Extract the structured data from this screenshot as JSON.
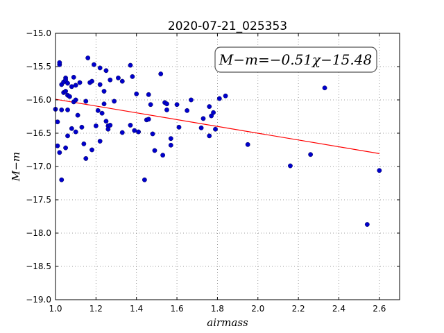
{
  "chart_data": {
    "type": "scatter",
    "title": "2020-07-21_025353",
    "xlabel": "airmass",
    "ylabel": "M−m",
    "xlim": [
      1.0,
      2.7
    ],
    "ylim": [
      -19.0,
      -15.0
    ],
    "xticks": [
      1.0,
      1.2,
      1.4,
      1.6,
      1.8,
      2.0,
      2.2,
      2.4,
      2.6
    ],
    "xtick_labels": [
      "1.0",
      "1.2",
      "1.4",
      "1.6",
      "1.8",
      "2.0",
      "2.2",
      "2.4",
      "2.6"
    ],
    "yticks": [
      -15.0,
      -15.5,
      -16.0,
      -16.5,
      -17.0,
      -17.5,
      -18.0,
      -18.5,
      -19.0
    ],
    "ytick_labels": [
      "−15.0",
      "−15.5",
      "−16.0",
      "−16.5",
      "−17.0",
      "−17.5",
      "−18.0",
      "−18.5",
      "−19.0"
    ],
    "grid": true,
    "annotation": "M−m=−0.51χ−15.48",
    "annotation_placement": "top-right",
    "fit": {
      "slope": -0.51,
      "intercept": -15.48,
      "x_range": [
        1.0,
        2.6
      ],
      "color": "#ff0000"
    },
    "marker_color": "#0000cc",
    "series": [
      {
        "values": [
          [
            1.0,
            -16.14
          ],
          [
            1.01,
            -16.33
          ],
          [
            1.01,
            -16.69
          ],
          [
            1.02,
            -16.79
          ],
          [
            1.02,
            -15.47
          ],
          [
            1.02,
            -15.44
          ],
          [
            1.03,
            -15.77
          ],
          [
            1.03,
            -16.15
          ],
          [
            1.03,
            -17.2
          ],
          [
            1.04,
            -15.73
          ],
          [
            1.04,
            -15.89
          ],
          [
            1.05,
            -15.67
          ],
          [
            1.05,
            -15.7
          ],
          [
            1.05,
            -15.87
          ],
          [
            1.05,
            -16.72
          ],
          [
            1.06,
            -15.75
          ],
          [
            1.06,
            -15.93
          ],
          [
            1.06,
            -16.15
          ],
          [
            1.06,
            -16.54
          ],
          [
            1.07,
            -15.95
          ],
          [
            1.08,
            -15.8
          ],
          [
            1.08,
            -16.43
          ],
          [
            1.09,
            -16.03
          ],
          [
            1.09,
            -15.66
          ],
          [
            1.1,
            -15.78
          ],
          [
            1.1,
            -16.0
          ],
          [
            1.1,
            -16.48
          ],
          [
            1.11,
            -16.23
          ],
          [
            1.12,
            -15.74
          ],
          [
            1.13,
            -16.41
          ],
          [
            1.14,
            -16.66
          ],
          [
            1.15,
            -16.02
          ],
          [
            1.15,
            -16.88
          ],
          [
            1.16,
            -15.37
          ],
          [
            1.17,
            -15.74
          ],
          [
            1.18,
            -15.72
          ],
          [
            1.18,
            -16.75
          ],
          [
            1.19,
            -15.47
          ],
          [
            1.2,
            -16.39
          ],
          [
            1.21,
            -16.16
          ],
          [
            1.22,
            -15.52
          ],
          [
            1.22,
            -15.77
          ],
          [
            1.22,
            -16.62
          ],
          [
            1.23,
            -16.2
          ],
          [
            1.24,
            -16.06
          ],
          [
            1.24,
            -15.87
          ],
          [
            1.25,
            -15.56
          ],
          [
            1.25,
            -16.32
          ],
          [
            1.26,
            -16.39
          ],
          [
            1.26,
            -16.44
          ],
          [
            1.27,
            -15.7
          ],
          [
            1.27,
            -16.38
          ],
          [
            1.29,
            -16.02
          ],
          [
            1.31,
            -15.67
          ],
          [
            1.33,
            -15.72
          ],
          [
            1.33,
            -16.49
          ],
          [
            1.37,
            -15.48
          ],
          [
            1.37,
            -16.38
          ],
          [
            1.38,
            -15.65
          ],
          [
            1.39,
            -16.46
          ],
          [
            1.4,
            -15.91
          ],
          [
            1.41,
            -16.48
          ],
          [
            1.44,
            -17.2
          ],
          [
            1.45,
            -16.3
          ],
          [
            1.46,
            -16.29
          ],
          [
            1.46,
            -15.92
          ],
          [
            1.47,
            -16.07
          ],
          [
            1.48,
            -16.51
          ],
          [
            1.49,
            -16.76
          ],
          [
            1.52,
            -15.61
          ],
          [
            1.53,
            -16.83
          ],
          [
            1.54,
            -16.04
          ],
          [
            1.55,
            -16.06
          ],
          [
            1.55,
            -16.15
          ],
          [
            1.57,
            -16.58
          ],
          [
            1.57,
            -16.68
          ],
          [
            1.6,
            -16.07
          ],
          [
            1.61,
            -16.41
          ],
          [
            1.65,
            -16.16
          ],
          [
            1.67,
            -16.0
          ],
          [
            1.72,
            -16.42
          ],
          [
            1.73,
            -16.28
          ],
          [
            1.76,
            -16.1
          ],
          [
            1.76,
            -16.54
          ],
          [
            1.77,
            -16.24
          ],
          [
            1.78,
            -16.19
          ],
          [
            1.79,
            -16.44
          ],
          [
            1.81,
            -15.98
          ],
          [
            1.84,
            -15.94
          ],
          [
            1.95,
            -16.67
          ],
          [
            2.16,
            -16.99
          ],
          [
            2.26,
            -16.82
          ],
          [
            2.33,
            -15.82
          ],
          [
            2.54,
            -17.87
          ],
          [
            2.6,
            -17.06
          ]
        ]
      }
    ]
  }
}
